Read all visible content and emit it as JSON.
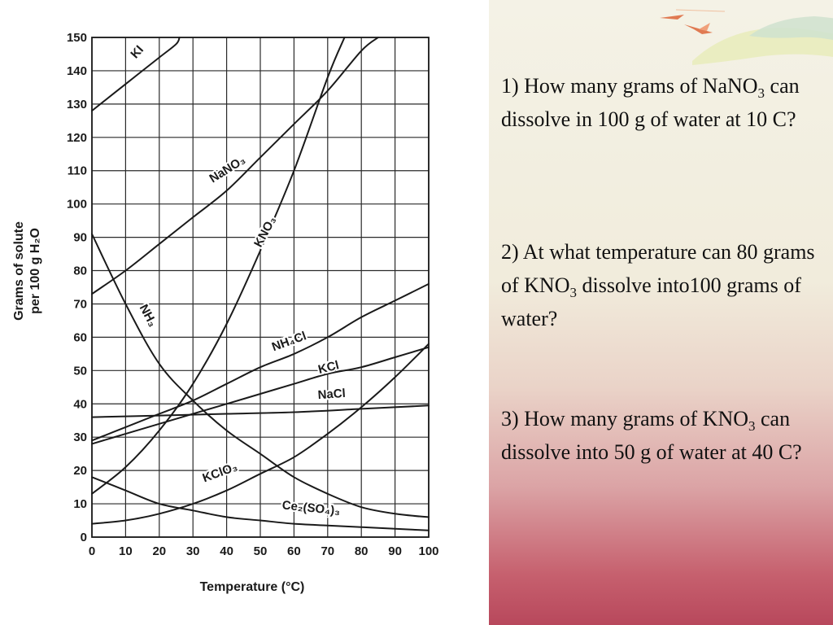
{
  "questions": {
    "q1": {
      "before": "1) How many grams of NaNO",
      "sub": "3",
      "after": " can dissolve in 100 g of water at 10 C?"
    },
    "q2": {
      "before": "2) At what temperature can 80 grams of KNO",
      "sub": "3",
      "after": " dissolve into100 grams of water?"
    },
    "q3": {
      "before": "3) How many grams of KNO",
      "sub": "3",
      "after": " can dissolve into 50 g of water at 40 C?"
    }
  },
  "chart_data": {
    "type": "line",
    "xlabel": "Temperature (°C)",
    "ylabel_line1": "Grams of solute",
    "ylabel_line2": "per 100 g H₂O",
    "xlim": [
      0,
      100
    ],
    "ylim": [
      0,
      150
    ],
    "xticks": [
      0,
      10,
      20,
      30,
      40,
      50,
      60,
      70,
      80,
      90,
      100
    ],
    "yticks": [
      0,
      10,
      20,
      30,
      40,
      50,
      60,
      70,
      80,
      90,
      100,
      110,
      120,
      130,
      140,
      150
    ],
    "grid": true,
    "series": [
      {
        "name": "KI",
        "points": [
          [
            0,
            128
          ],
          [
            10,
            136
          ],
          [
            20,
            144
          ],
          [
            25,
            148
          ],
          [
            26,
            150
          ]
        ]
      },
      {
        "name": "NaNO₃",
        "points": [
          [
            0,
            73
          ],
          [
            10,
            80
          ],
          [
            20,
            88
          ],
          [
            30,
            96
          ],
          [
            40,
            104
          ],
          [
            50,
            114
          ],
          [
            60,
            124
          ],
          [
            70,
            134
          ],
          [
            80,
            146
          ],
          [
            85,
            150
          ]
        ]
      },
      {
        "name": "KNO₃",
        "points": [
          [
            0,
            13
          ],
          [
            10,
            21
          ],
          [
            20,
            32
          ],
          [
            30,
            46
          ],
          [
            40,
            64
          ],
          [
            50,
            86
          ],
          [
            60,
            110
          ],
          [
            70,
            138
          ],
          [
            75,
            150
          ]
        ]
      },
      {
        "name": "NH₃",
        "points": [
          [
            0,
            91
          ],
          [
            10,
            70
          ],
          [
            20,
            52
          ],
          [
            30,
            41
          ],
          [
            40,
            32
          ],
          [
            50,
            25
          ],
          [
            60,
            18
          ],
          [
            70,
            13
          ],
          [
            80,
            9
          ],
          [
            90,
            7
          ],
          [
            100,
            6
          ]
        ]
      },
      {
        "name": "NH₄Cl",
        "points": [
          [
            0,
            29
          ],
          [
            10,
            33
          ],
          [
            20,
            37
          ],
          [
            30,
            41
          ],
          [
            40,
            46
          ],
          [
            50,
            51
          ],
          [
            60,
            55
          ],
          [
            70,
            60
          ],
          [
            80,
            66
          ],
          [
            90,
            71
          ],
          [
            100,
            76
          ]
        ]
      },
      {
        "name": "KCl",
        "points": [
          [
            0,
            28
          ],
          [
            10,
            31
          ],
          [
            20,
            34
          ],
          [
            30,
            37
          ],
          [
            40,
            40
          ],
          [
            50,
            43
          ],
          [
            60,
            46
          ],
          [
            70,
            49
          ],
          [
            80,
            51
          ],
          [
            90,
            54
          ],
          [
            100,
            57
          ]
        ]
      },
      {
        "name": "NaCl",
        "points": [
          [
            0,
            36
          ],
          [
            20,
            36.5
          ],
          [
            40,
            37
          ],
          [
            60,
            37.5
          ],
          [
            80,
            38.5
          ],
          [
            100,
            39.5
          ]
        ]
      },
      {
        "name": "KClO₃",
        "points": [
          [
            0,
            4
          ],
          [
            10,
            5
          ],
          [
            20,
            7
          ],
          [
            30,
            10
          ],
          [
            40,
            14
          ],
          [
            50,
            19
          ],
          [
            60,
            24
          ],
          [
            70,
            31
          ],
          [
            80,
            39
          ],
          [
            90,
            48
          ],
          [
            100,
            58
          ]
        ]
      },
      {
        "name": "Ce₂(SO₄)₃",
        "points": [
          [
            0,
            18
          ],
          [
            10,
            14
          ],
          [
            20,
            10
          ],
          [
            30,
            8
          ],
          [
            40,
            6
          ],
          [
            50,
            5
          ],
          [
            60,
            4
          ],
          [
            70,
            3.5
          ],
          [
            80,
            3
          ],
          [
            90,
            2.5
          ],
          [
            100,
            2
          ]
        ]
      }
    ]
  }
}
